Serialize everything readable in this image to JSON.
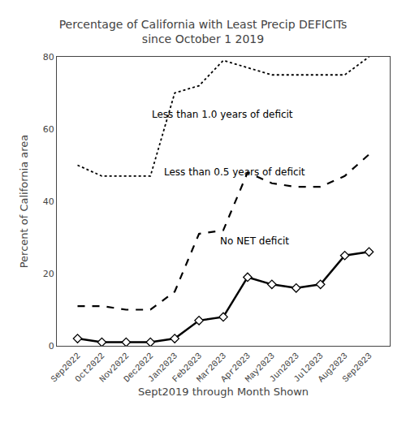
{
  "chart_data": {
    "type": "line",
    "title": "Percentage of California with Least Precip DEFICITs\nsince October 1 2019",
    "xlabel": "Sept2019 through Month Shown",
    "ylabel": "Percent of California area",
    "categories": [
      "Sep2022",
      "Oct2022",
      "Nov2022",
      "Dec2022",
      "Jan2023",
      "Feb2023",
      "Mar2023",
      "Apr2023",
      "May2023",
      "Jun2023",
      "Jul2023",
      "Aug2023",
      "Sep2023"
    ],
    "series": [
      {
        "name": "Less than 1.0 years of deficit",
        "color": "black",
        "line_style": "dotted",
        "values": [
          50,
          47,
          47,
          47,
          70,
          72,
          79,
          77,
          75,
          75,
          75,
          75,
          80
        ]
      },
      {
        "name": "Less than 0.5 years of deficit",
        "color": "black",
        "line_style": "dashed",
        "values": [
          11,
          11,
          10,
          10,
          15,
          31,
          32,
          48,
          45,
          44,
          44,
          47,
          53
        ]
      },
      {
        "name": "No NET deficit",
        "color": "black",
        "line_style": "solid",
        "marker": "diamond",
        "values": [
          2,
          1,
          1,
          1,
          2,
          7,
          8,
          19,
          17,
          16,
          17,
          25,
          26
        ]
      }
    ],
    "annotations": [
      {
        "text": "Less than 1.0 years of deficit",
        "x": 3.0,
        "y": 64
      },
      {
        "text": "Less than 0.5 years of deficit",
        "x": 3.5,
        "y": 48
      },
      {
        "text": "No NET deficit",
        "x": 5.8,
        "y": 29
      }
    ],
    "ylim": [
      0,
      80
    ],
    "yticks": [
      0,
      20,
      40,
      60,
      80
    ],
    "grid": false,
    "legend": false
  }
}
